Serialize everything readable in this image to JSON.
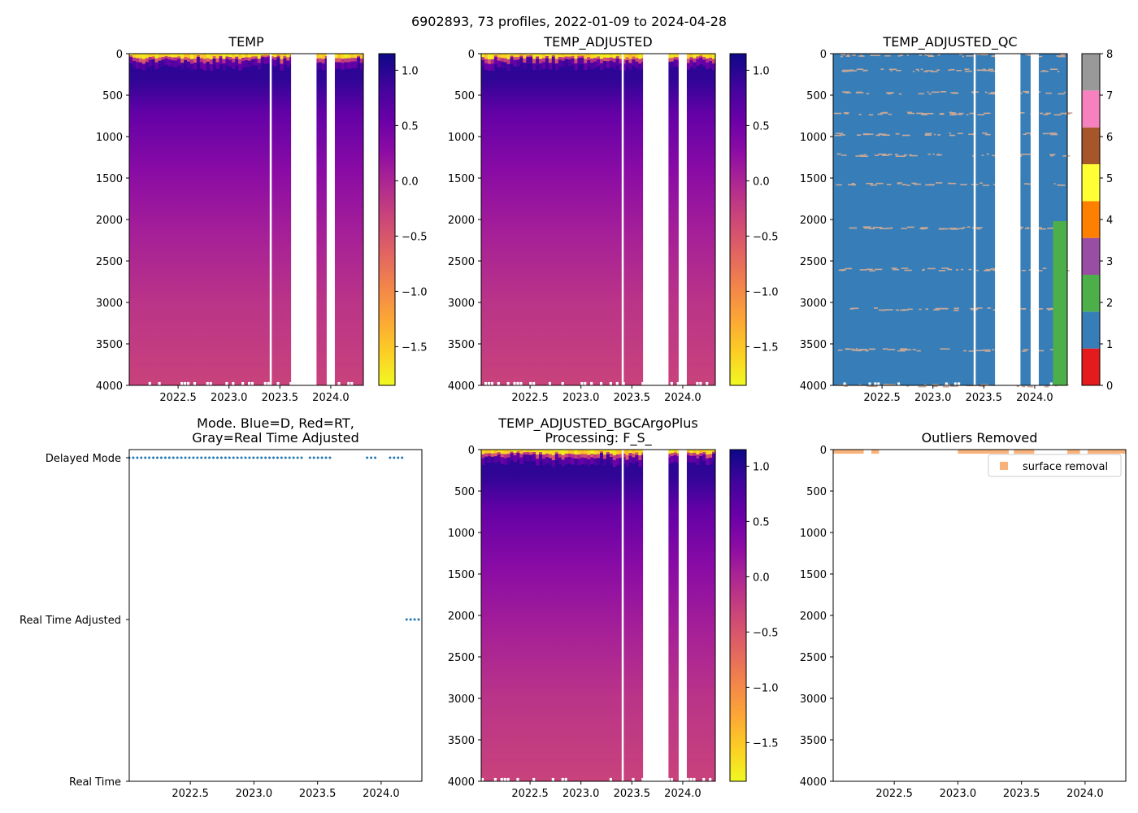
{
  "suptitle": "6902893, 73 profiles, 2022-01-09 to 2024-04-28",
  "colors": {
    "plasma": [
      "#0d0887",
      "#41049d",
      "#6a00a8",
      "#8f0da4",
      "#b12a90",
      "#cc4778",
      "#e16462",
      "#f2844b",
      "#fca636",
      "#fcce25",
      "#f0f921"
    ],
    "qc_colors": [
      "#e41a1c",
      "#377eb8",
      "#4daf4a",
      "#984ea3",
      "#ff7f00",
      "#ffff33",
      "#a65628",
      "#f781bf",
      "#999999"
    ],
    "mode_dot": "#1f77b4",
    "outlier": "#f8b27a",
    "qc_noise": "#c8a898"
  },
  "chart_data": [
    {
      "type": "heatmap",
      "title": "TEMP",
      "xlim": [
        2022.02,
        2024.32
      ],
      "ylim": [
        4000,
        0
      ],
      "xticks": [
        "2022.5",
        "2023.0",
        "2023.5",
        "2024.0"
      ],
      "yticks": [
        "0",
        "500",
        "1000",
        "1500",
        "2000",
        "2500",
        "3000",
        "3500",
        "4000"
      ],
      "colorbar": {
        "range": [
          -1.85,
          1.15
        ],
        "ticks": [
          "1.0",
          "0.5",
          "0.0",
          "−0.5",
          "−1.0",
          "−1.5"
        ],
        "tick_values": [
          1.0,
          0.5,
          0.0,
          -0.5,
          -1.0,
          -1.5
        ]
      },
      "data_gaps": [
        [
          2023.4,
          2023.42
        ],
        [
          2023.61,
          2023.86
        ],
        [
          2023.96,
          2024.04
        ]
      ],
      "surface_value": -1.8,
      "max_value_depth": 200,
      "deep_value": -0.35
    },
    {
      "type": "heatmap",
      "title": "TEMP_ADJUSTED",
      "xlim": [
        2022.02,
        2024.32
      ],
      "ylim": [
        4000,
        0
      ],
      "xticks": [
        "2022.5",
        "2023.0",
        "2023.5",
        "2024.0"
      ],
      "yticks": [
        "0",
        "500",
        "1000",
        "1500",
        "2000",
        "2500",
        "3000",
        "3500",
        "4000"
      ],
      "colorbar": {
        "range": [
          -1.85,
          1.15
        ],
        "ticks": [
          "1.0",
          "0.5",
          "0.0",
          "−0.5",
          "−1.0",
          "−1.5"
        ],
        "tick_values": [
          1.0,
          0.5,
          0.0,
          -0.5,
          -1.0,
          -1.5
        ]
      },
      "data_gaps": [
        [
          2023.4,
          2023.42
        ],
        [
          2023.61,
          2023.86
        ],
        [
          2023.96,
          2024.04
        ]
      ]
    },
    {
      "type": "heatmap",
      "title": "TEMP_ADJUSTED_QC",
      "xlim": [
        2022.02,
        2024.32
      ],
      "ylim": [
        4000,
        0
      ],
      "xticks": [
        "2022.5",
        "2023.0",
        "2023.5",
        "2024.0"
      ],
      "yticks": [
        "0",
        "500",
        "1000",
        "1500",
        "2000",
        "2500",
        "3000",
        "3500",
        "4000"
      ],
      "colorbar": {
        "range": [
          0,
          8
        ],
        "ticks": [
          "0",
          "1",
          "2",
          "3",
          "4",
          "5",
          "6",
          "7",
          "8"
        ],
        "tick_values": [
          0,
          1,
          2,
          3,
          4,
          5,
          6,
          7,
          8
        ]
      },
      "data_gaps": [
        [
          2023.4,
          2023.42
        ],
        [
          2023.61,
          2023.86
        ],
        [
          2023.96,
          2024.04
        ]
      ],
      "flag_1_everywhere": true,
      "flag_2_region": {
        "x": [
          2024.18,
          2024.32
        ],
        "depth": [
          2020,
          4000
        ]
      }
    },
    {
      "type": "scatter",
      "title": "Mode. Blue=D, Red=RT,\nGray=Real Time Adjusted",
      "title_lines": [
        "Mode. Blue=D, Red=RT,",
        "Gray=Real Time Adjusted"
      ],
      "xlim": [
        2022.02,
        2024.32
      ],
      "xticks": [
        "2022.5",
        "2023.0",
        "2023.5",
        "2024.0"
      ],
      "ycategories": [
        "Delayed Mode",
        "Real Time Adjusted",
        "Real Time"
      ],
      "series": [
        {
          "name": "Delayed Mode",
          "x_ranges": [
            [
              2022.02,
              2023.38
            ],
            [
              2023.44,
              2023.61
            ],
            [
              2023.89,
              2023.98
            ],
            [
              2024.07,
              2024.18
            ]
          ]
        },
        {
          "name": "Real Time Adjusted",
          "x_ranges": [
            [
              2024.2,
              2024.32
            ]
          ]
        }
      ]
    },
    {
      "type": "heatmap",
      "title": "TEMP_ADJUSTED_BGCArgoPlus\nProcessing: F_S_",
      "title_lines": [
        "TEMP_ADJUSTED_BGCArgoPlus",
        "Processing: F_S_"
      ],
      "xlim": [
        2022.02,
        2024.32
      ],
      "ylim": [
        4000,
        0
      ],
      "xticks": [
        "2022.5",
        "2023.0",
        "2023.5",
        "2024.0"
      ],
      "yticks": [
        "0",
        "500",
        "1000",
        "1500",
        "2000",
        "2500",
        "3000",
        "3500",
        "4000"
      ],
      "colorbar": {
        "range": [
          -1.85,
          1.15
        ],
        "ticks": [
          "1.0",
          "0.5",
          "0.0",
          "−0.5",
          "−1.0",
          "−1.5"
        ],
        "tick_values": [
          1.0,
          0.5,
          0.0,
          -0.5,
          -1.0,
          -1.5
        ]
      },
      "data_gaps": [
        [
          2023.4,
          2023.42
        ],
        [
          2023.61,
          2023.86
        ],
        [
          2023.96,
          2024.04
        ]
      ]
    },
    {
      "type": "scatter",
      "title": "Outliers Removed",
      "xlim": [
        2022.02,
        2024.32
      ],
      "ylim": [
        4000,
        0
      ],
      "xticks": [
        "2022.5",
        "2023.0",
        "2023.5",
        "2024.0"
      ],
      "yticks": [
        "0",
        "500",
        "1000",
        "1500",
        "2000",
        "2500",
        "3000",
        "3500",
        "4000"
      ],
      "legend": {
        "label": "surface removal",
        "loc": "upper right"
      },
      "series": [
        {
          "name": "surface removal",
          "depth_range": [
            0,
            20
          ],
          "x_ranges": [
            [
              2022.02,
              2022.26
            ],
            [
              2022.32,
              2022.38
            ],
            [
              2023.0,
              2023.4
            ],
            [
              2023.44,
              2023.6
            ],
            [
              2023.86,
              2023.96
            ],
            [
              2024.02,
              2024.32
            ]
          ]
        }
      ]
    }
  ]
}
